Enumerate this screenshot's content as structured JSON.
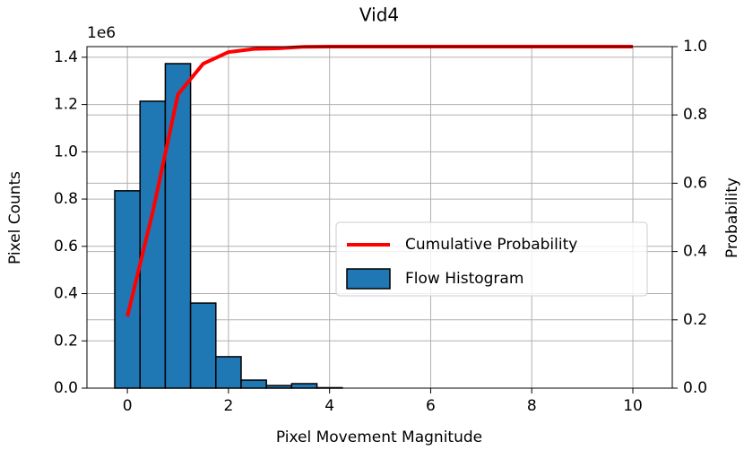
{
  "chart_data": {
    "type": "histogram+line",
    "title": "Vid4",
    "x_label": "Pixel Movement Magnitude",
    "y_label": "Pixel Counts",
    "y2_label": "Probability",
    "y_offset_text": "1e6",
    "bins": [
      -0.25,
      0.25,
      0.75,
      1.25,
      1.75,
      2.25,
      2.75,
      3.25,
      3.75,
      4.25,
      4.75,
      5.25,
      5.75,
      6.25,
      6.75,
      7.25,
      7.75,
      8.25,
      8.75,
      9.25,
      9.75,
      10.25
    ],
    "series": [
      {
        "name": "Cumulative Probability",
        "type": "line",
        "axis": "y2",
        "color": "#ff0000",
        "x": [
          0,
          0.5,
          1,
          1.5,
          2,
          2.5,
          3,
          3.5,
          4,
          4.5,
          5,
          5.5,
          6,
          6.5,
          7,
          7.5,
          8,
          8.5,
          9,
          9.5,
          10
        ],
        "values": [
          0.21,
          0.515,
          0.86,
          0.95,
          0.984,
          0.993,
          0.995,
          0.9995,
          1,
          1,
          1,
          1,
          1,
          1,
          1,
          1,
          1,
          1,
          1,
          1,
          1
        ]
      },
      {
        "name": "Flow Histogram",
        "type": "histogram",
        "color": "#1f77b4",
        "values": [
          835000,
          1214000,
          1373000,
          360000,
          133000,
          34000,
          11000,
          19000,
          2000,
          0,
          0,
          0,
          0,
          0,
          0,
          0,
          0,
          0,
          0,
          0,
          0
        ]
      }
    ],
    "xlim": [
      -0.8,
      10.78
    ],
    "ylim": [
      0,
      1445000
    ],
    "y2lim": [
      0,
      1
    ],
    "xticks": [
      0,
      2,
      4,
      6,
      8,
      10
    ],
    "yticks": [
      {
        "value": 0,
        "label": "0.0"
      },
      {
        "value": 200000,
        "label": "0.2"
      },
      {
        "value": 400000,
        "label": "0.4"
      },
      {
        "value": 600000,
        "label": "0.6"
      },
      {
        "value": 800000,
        "label": "0.8"
      },
      {
        "value": 1000000,
        "label": "1.0"
      },
      {
        "value": 1200000,
        "label": "1.2"
      },
      {
        "value": 1400000,
        "label": "1.4"
      }
    ],
    "y2ticks": [
      {
        "value": 0,
        "label": "0.0"
      },
      {
        "value": 0.2,
        "label": "0.2"
      },
      {
        "value": 0.4,
        "label": "0.4"
      },
      {
        "value": 0.6,
        "label": "0.6"
      },
      {
        "value": 0.8,
        "label": "0.8"
      },
      {
        "value": 1,
        "label": "1.0"
      }
    ],
    "grid": true
  }
}
